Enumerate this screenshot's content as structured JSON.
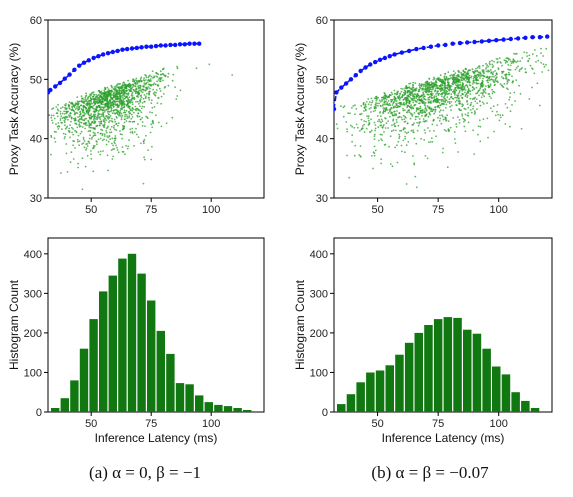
{
  "panels": [
    {
      "caption": "(a) α = 0, β = −1",
      "scatter": {
        "ylabel": "Proxy Task Accuracy (%)",
        "xlim": [
          32,
          122
        ],
        "ylim": [
          30,
          60
        ],
        "xticks": [
          50,
          75,
          100
        ],
        "yticks": [
          30,
          40,
          50,
          60
        ],
        "cloud": {
          "x_mean": 58,
          "x_sd": 11,
          "y_base": 46,
          "y_slope": 0.14,
          "y_cap": 56,
          "n": 1500,
          "seed": 11
        },
        "frontier": {
          "x": [
            32,
            33,
            35,
            37,
            39,
            41,
            43,
            45,
            47,
            49,
            51,
            53,
            55,
            57,
            59,
            61,
            63,
            65,
            67,
            69,
            71,
            73,
            75,
            77,
            79,
            81,
            83,
            85,
            87,
            89,
            91,
            93,
            95
          ],
          "y": [
            47.8,
            48.2,
            48.8,
            49.4,
            50.1,
            50.8,
            51.6,
            52.3,
            52.8,
            53.2,
            53.6,
            53.9,
            54.2,
            54.4,
            54.6,
            54.8,
            55.0,
            55.1,
            55.2,
            55.3,
            55.4,
            55.5,
            55.5,
            55.6,
            55.7,
            55.7,
            55.8,
            55.8,
            55.9,
            55.9,
            56.0,
            56.0,
            56.0
          ]
        }
      },
      "hist": {
        "xlabel": "Inference Latency (ms)",
        "ylabel": "Histogram Count",
        "xlim": [
          32,
          122
        ],
        "ylim": [
          0,
          440
        ],
        "xticks": [
          50,
          75,
          100
        ],
        "yticks": [
          0,
          100,
          200,
          300,
          400
        ],
        "bin_width": 4,
        "bin_starts": [
          33,
          37,
          41,
          45,
          49,
          53,
          57,
          61,
          65,
          69,
          73,
          77,
          81,
          85,
          89,
          93,
          97,
          101,
          105,
          109,
          113
        ],
        "counts": [
          10,
          35,
          80,
          160,
          235,
          305,
          345,
          388,
          400,
          350,
          282,
          205,
          147,
          73,
          70,
          42,
          25,
          18,
          15,
          10,
          5
        ]
      }
    },
    {
      "caption": "(b) α = β = −0.07",
      "scatter": {
        "ylabel": "Proxy Task Accuracy (%)",
        "xlim": [
          32,
          122
        ],
        "ylim": [
          30,
          60
        ],
        "xticks": [
          50,
          75,
          100
        ],
        "yticks": [
          30,
          40,
          50,
          60
        ],
        "cloud": {
          "x_mean": 75,
          "x_sd": 18,
          "y_base": 46,
          "y_slope": 0.12,
          "y_cap": 57,
          "n": 1700,
          "seed": 23
        },
        "frontier": {
          "x": [
            32,
            33,
            35,
            37,
            39,
            41,
            43,
            45,
            47,
            49,
            51,
            53,
            55,
            57,
            60,
            63,
            66,
            69,
            72,
            75,
            78,
            81,
            84,
            87,
            90,
            93,
            96,
            99,
            102,
            105,
            108,
            111,
            114,
            117,
            120
          ],
          "y": [
            45.0,
            47.8,
            48.6,
            49.3,
            50.0,
            50.7,
            51.4,
            52.0,
            52.5,
            52.9,
            53.3,
            53.6,
            53.9,
            54.2,
            54.5,
            54.8,
            55.1,
            55.3,
            55.5,
            55.7,
            55.8,
            56.0,
            56.1,
            56.2,
            56.3,
            56.4,
            56.5,
            56.6,
            56.7,
            56.8,
            56.9,
            57.0,
            57.1,
            57.1,
            57.2
          ]
        }
      },
      "hist": {
        "xlabel": "Inference Latency (ms)",
        "ylabel": "Histogram Count",
        "xlim": [
          32,
          122
        ],
        "ylim": [
          0,
          440
        ],
        "xticks": [
          50,
          75,
          100
        ],
        "yticks": [
          0,
          100,
          200,
          300,
          400
        ],
        "bin_width": 4,
        "bin_starts": [
          33,
          37,
          41,
          45,
          49,
          53,
          57,
          61,
          65,
          69,
          73,
          77,
          81,
          85,
          89,
          93,
          97,
          101,
          105,
          109,
          113
        ],
        "counts": [
          20,
          45,
          75,
          100,
          105,
          118,
          145,
          175,
          200,
          220,
          235,
          240,
          238,
          208,
          198,
          160,
          115,
          95,
          50,
          28,
          10
        ]
      }
    }
  ],
  "colors": {
    "scatter": "#2ca02c",
    "frontier": "#0a14ff",
    "bar": "#117711",
    "axis": "#000000"
  }
}
